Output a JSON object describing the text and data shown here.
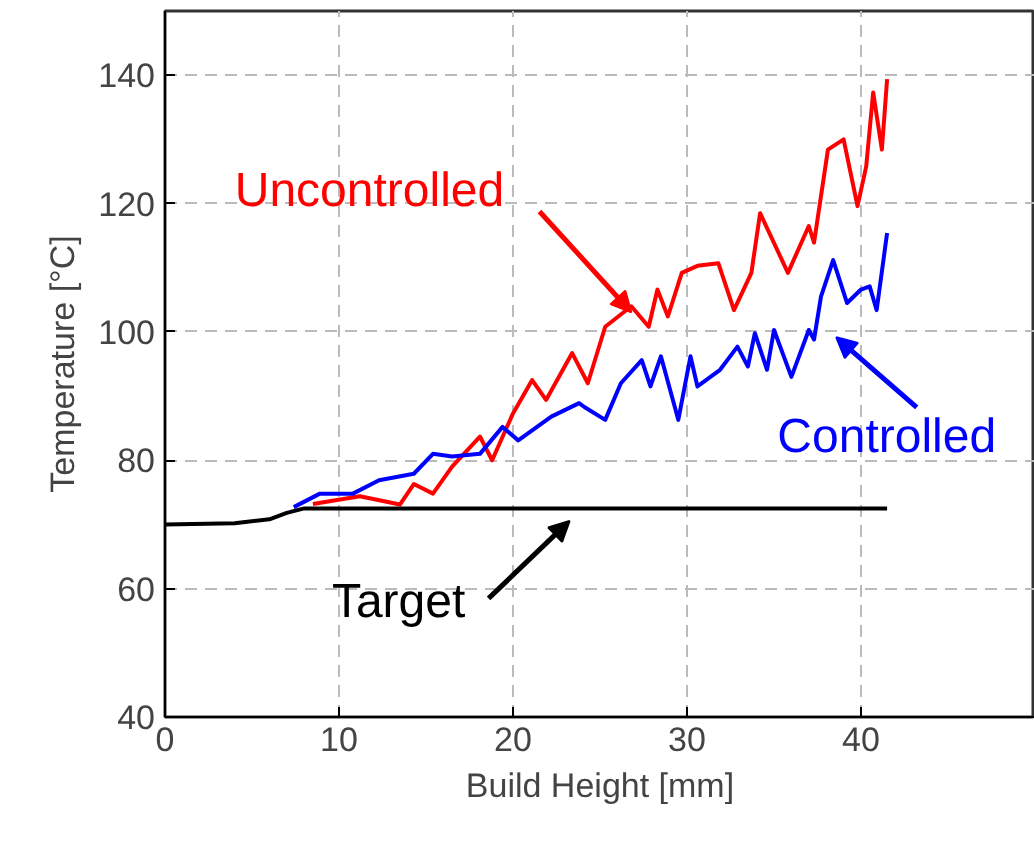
{
  "chart_data": {
    "type": "line",
    "xlabel": "Build Height [mm]",
    "ylabel": "Temperature [°C]",
    "xlim": [
      0,
      50
    ],
    "ylim": [
      40,
      150
    ],
    "xticks": [
      0,
      10,
      20,
      30,
      40
    ],
    "yticks": [
      40,
      60,
      80,
      100,
      120,
      140
    ],
    "grid": true,
    "line_style": "solid",
    "marker": "none",
    "series": [
      {
        "color": "#ff0000",
        "x": [
          8.5,
          11.2,
          13.5,
          14.3,
          15.4,
          16.5,
          18.1,
          18.8,
          20,
          21.1,
          21.9,
          23.4,
          24.3,
          25.3,
          26.8,
          27.8,
          28.3,
          28.9,
          29.7,
          30.6,
          31.8,
          32.7,
          33.7,
          34.2,
          35.8,
          37,
          37.3,
          38.1,
          39,
          39.8,
          40.3,
          40.7,
          41.2,
          41.5
        ],
        "values": [
          73.2,
          74.4,
          73.1,
          76.3,
          74.8,
          79,
          83.7,
          80,
          87.3,
          92.5,
          89.4,
          96.7,
          92,
          100.8,
          104,
          100.8,
          106.6,
          102.4,
          109.2,
          110.3,
          110.7,
          103.4,
          109.2,
          118.5,
          109.2,
          116.5,
          113.9,
          128.4,
          130,
          119.6,
          125.8,
          137.3,
          128.4,
          139.4
        ]
      },
      {
        "color": "#0000ff",
        "x": [
          7.4,
          8.9,
          10.8,
          12.3,
          14.3,
          15.4,
          16.5,
          18.1,
          19.4,
          20.3,
          22.2,
          23.8,
          24.1,
          25.3,
          26.2,
          27.4,
          27.9,
          28.5,
          29.5,
          30.2,
          30.6,
          31.9,
          32.9,
          33.5,
          33.9,
          34.6,
          35,
          36,
          37,
          37.3,
          37.7,
          38.4,
          39.2,
          40,
          40.5,
          40.9,
          41.5
        ],
        "values": [
          72.7,
          74.8,
          74.8,
          76.9,
          77.9,
          81,
          80.6,
          81,
          85.2,
          83.1,
          86.8,
          88.9,
          88.3,
          86.3,
          92,
          95.6,
          91.5,
          96.2,
          86.3,
          96.2,
          91.5,
          94.1,
          97.7,
          94.6,
          99.8,
          94.1,
          100.3,
          93,
          100.3,
          98.8,
          105.5,
          111.2,
          104.5,
          106.6,
          107.1,
          103.4,
          115.4
        ]
      },
      {
        "color": "#000000",
        "x": [
          0,
          4,
          6,
          7,
          8,
          41.5
        ],
        "values": [
          70,
          70.2,
          70.8,
          71.8,
          72.5,
          72.5
        ]
      }
    ],
    "annotations": [
      {
        "text": "Uncontrolled",
        "x": 27.5,
        "y": 101
      },
      {
        "text": "Controlled",
        "x": 37.8,
        "y": 101
      },
      {
        "text": "Target",
        "x": 24,
        "y": 72.5
      }
    ]
  }
}
